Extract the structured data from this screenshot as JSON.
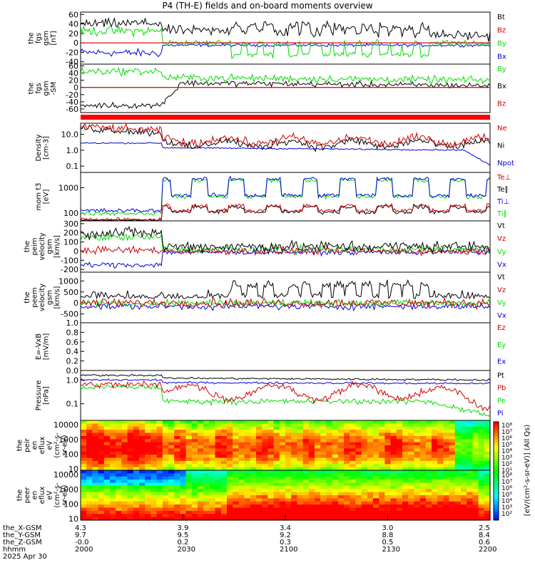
{
  "title": "P4 (TH-E) fields and on-board moments overview",
  "chart_data": [
    {
      "type": "line",
      "ylabel_lines": [
        "the",
        "fgs",
        "gsm",
        "[nT]"
      ],
      "yticks": [
        -40,
        -20,
        0,
        20,
        40,
        60
      ],
      "ylim": [
        -45,
        65
      ],
      "series": [
        {
          "name": "Bt",
          "color": "#000000"
        },
        {
          "name": "Bz",
          "color": "#d00000"
        },
        {
          "name": "By",
          "color": "#00dd00"
        },
        {
          "name": "Bx",
          "color": "#0000dd"
        }
      ]
    },
    {
      "type": "line",
      "ylabel_lines": [
        "the",
        "fgs",
        "gsm",
        "-SM"
      ],
      "yticks": [
        -60,
        -40,
        -20,
        0,
        20,
        40,
        60
      ],
      "ylim": [
        -70,
        65
      ],
      "series": [
        {
          "name": "By",
          "color": "#00dd00"
        },
        {
          "name": "Bx",
          "color": "#000000"
        },
        {
          "name": "Bz",
          "color": "#d00000"
        }
      ]
    },
    {
      "type": "line",
      "ylabel_lines": [
        "Density",
        "[cm-3]"
      ],
      "yticks": [
        "10.0",
        "1.0",
        "0.1"
      ],
      "yscale": "log",
      "ylim": [
        0.04,
        50
      ],
      "series": [
        {
          "name": "Ne",
          "color": "#d00000"
        },
        {
          "name": "Ni",
          "color": "#000000"
        },
        {
          "name": "Npot",
          "color": "#0000dd"
        }
      ]
    },
    {
      "type": "line",
      "ylabel_lines": [
        "mom t3",
        "[eV]"
      ],
      "yticks": [
        "1000",
        "100"
      ],
      "yscale": "log",
      "ylim": [
        50,
        4000
      ],
      "series": [
        {
          "name": "Te⊥",
          "color": "#d00000"
        },
        {
          "name": "Te∥",
          "color": "#000000"
        },
        {
          "name": "Ti⊥",
          "color": "#0000dd"
        },
        {
          "name": "Ti∥",
          "color": "#00dd00"
        }
      ]
    },
    {
      "type": "line",
      "ylabel_lines": [
        "the",
        "peim",
        "velocity",
        "gsm",
        "[km/s]"
      ],
      "yticks": [
        -200,
        -100,
        0,
        100,
        200,
        300
      ],
      "ylim": [
        -230,
        330
      ],
      "series": [
        {
          "name": "Vt",
          "color": "#000000"
        },
        {
          "name": "Vz",
          "color": "#d00000"
        },
        {
          "name": "Vy",
          "color": "#00dd00"
        },
        {
          "name": "Vx",
          "color": "#0000dd"
        }
      ]
    },
    {
      "type": "line",
      "ylabel_lines": [
        "the",
        "peem",
        "velocity",
        "gsm",
        "[km/s]"
      ],
      "yticks": [
        -500,
        0,
        500,
        1000
      ],
      "ylim": [
        -900,
        1400
      ],
      "series": [
        {
          "name": "Vt",
          "color": "#000000"
        },
        {
          "name": "Vz",
          "color": "#d00000"
        },
        {
          "name": "Vy",
          "color": "#00dd00"
        },
        {
          "name": "Vx",
          "color": "#0000dd"
        }
      ]
    },
    {
      "type": "line",
      "ylabel_lines": [
        "E=-VxB",
        "[mV/m]"
      ],
      "yticks": [
        "0.0",
        "0.2",
        "0.4",
        "0.6",
        "0.8",
        "1.0"
      ],
      "ylim": [
        0,
        1
      ],
      "series": [
        {
          "name": "Ez",
          "color": "#d00000"
        },
        {
          "name": "Ey",
          "color": "#00dd00"
        },
        {
          "name": "Ex",
          "color": "#0000dd"
        }
      ]
    },
    {
      "type": "line",
      "ylabel_lines": [
        "Pressure",
        "[nPa]"
      ],
      "yticks": [
        "1.0",
        "0.1"
      ],
      "yscale": "log",
      "ylim": [
        0.02,
        2.5
      ],
      "series": [
        {
          "name": "Pt",
          "color": "#000000"
        },
        {
          "name": "Pb",
          "color": "#d00000"
        },
        {
          "name": "Pe",
          "color": "#00dd00"
        },
        {
          "name": "Pi",
          "color": "#0000dd"
        }
      ]
    },
    {
      "type": "heatmap",
      "ylabel_lines": [
        "the",
        "peir",
        "en",
        "eflux",
        "eV",
        "(cm²-s-",
        "sr-eV)"
      ],
      "yticks": [
        "10000",
        "1000",
        "100",
        "10"
      ],
      "yscale": "log"
    },
    {
      "type": "heatmap",
      "ylabel_lines": [
        "the",
        "peer",
        "en",
        "eflux",
        "eV",
        "(cm²-s-",
        "sr-eV)"
      ],
      "yticks": [
        "10000",
        "1000",
        "100",
        "10"
      ],
      "yscale": "log"
    }
  ],
  "colorbar": {
    "label": "[eV/(cm²-s-sr-eV)] (All Qs)",
    "ticks_top": [
      "10⁸",
      "10⁷",
      "10⁶",
      "10⁵",
      "10⁴",
      "10³",
      "10²",
      "10¹"
    ],
    "ticks_bottom": [
      "10⁸",
      "10⁷",
      "10⁶",
      "10⁵",
      "10⁴",
      "10³",
      "10²"
    ]
  },
  "ephemeris": {
    "labels": [
      "the_X-GSM",
      "the_Y-GSM",
      "the_Z-GSM",
      "hhmm",
      "2025 Apr 30"
    ],
    "columns": [
      {
        "values": [
          "4.3",
          "9.7",
          "-0.0",
          "2000"
        ]
      },
      {
        "values": [
          "3.9",
          "9.5",
          "0.2",
          "2030"
        ]
      },
      {
        "values": [
          "3.4",
          "9.2",
          "0.3",
          "2100"
        ]
      },
      {
        "values": [
          "3.0",
          "8.8",
          "0.5",
          "2130"
        ]
      },
      {
        "values": [
          "2.5",
          "8.4",
          "0.6",
          "2200"
        ]
      }
    ]
  }
}
